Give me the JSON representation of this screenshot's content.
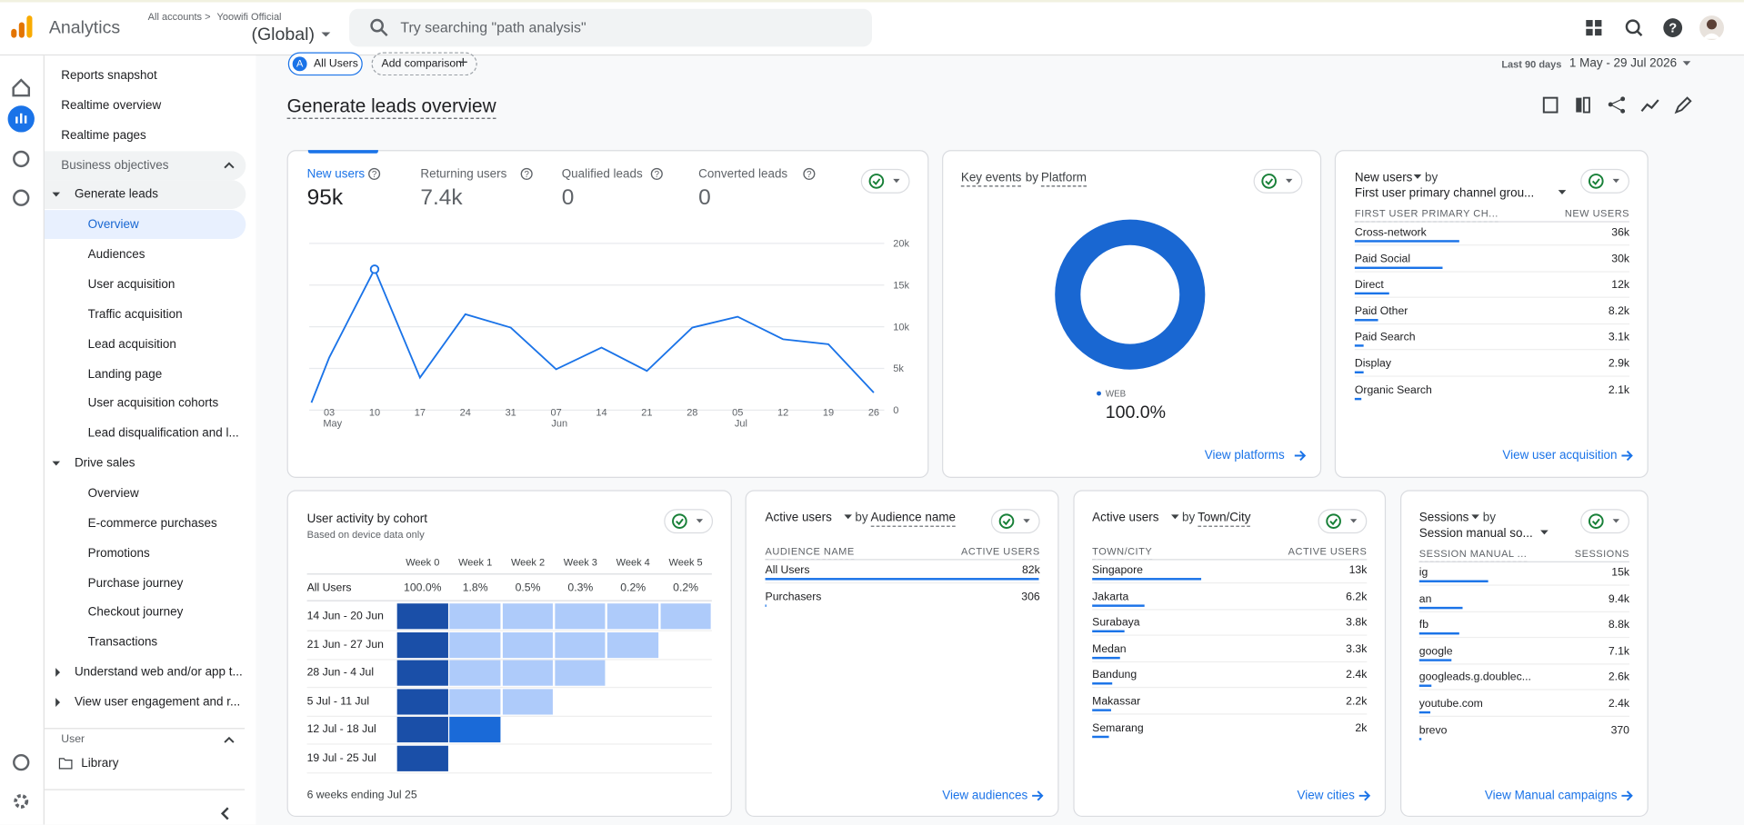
{
  "topbar": {
    "app": "Analytics",
    "breadcrumb": "All accounts",
    "account": "Yoowifi Official",
    "property": "(Global)",
    "search": "Try searching \"path analysis\""
  },
  "sidebar": {
    "items": [
      {
        "label": "Reports snapshot",
        "kind": "link"
      },
      {
        "label": "Realtime overview",
        "kind": "link"
      },
      {
        "label": "Realtime pages",
        "kind": "link"
      },
      {
        "label": "Business objectives",
        "kind": "section"
      },
      {
        "label": "Generate leads",
        "kind": "group-open"
      },
      {
        "label": "Overview",
        "kind": "sub-selected"
      },
      {
        "label": "Audiences",
        "kind": "sub"
      },
      {
        "label": "User acquisition",
        "kind": "sub"
      },
      {
        "label": "Traffic acquisition",
        "kind": "sub"
      },
      {
        "label": "Lead acquisition",
        "kind": "sub"
      },
      {
        "label": "Landing page",
        "kind": "sub"
      },
      {
        "label": "User acquisition cohorts",
        "kind": "sub"
      },
      {
        "label": "Lead disqualification and l...",
        "kind": "sub"
      },
      {
        "label": "Drive sales",
        "kind": "group-open"
      },
      {
        "label": "Overview",
        "kind": "sub"
      },
      {
        "label": "E-commerce purchases",
        "kind": "sub"
      },
      {
        "label": "Promotions",
        "kind": "sub"
      },
      {
        "label": "Purchase journey",
        "kind": "sub"
      },
      {
        "label": "Checkout journey",
        "kind": "sub"
      },
      {
        "label": "Transactions",
        "kind": "sub"
      },
      {
        "label": "Understand web and/or app t...",
        "kind": "group-closed"
      },
      {
        "label": "View user engagement and r...",
        "kind": "group-closed"
      }
    ],
    "section2": "User",
    "library": "Library"
  },
  "filters": {
    "badge": "A",
    "segment": "All Users",
    "add": "Add comparison",
    "range_label": "Last 90 days",
    "range": "1 May - 29 Jul 2026"
  },
  "title": "Generate leads overview",
  "overview": {
    "metrics": [
      {
        "name": "New users",
        "value": "95k"
      },
      {
        "name": "Returning users",
        "value": "7.4k"
      },
      {
        "name": "Qualified leads",
        "value": "0"
      },
      {
        "name": "Converted leads",
        "value": "0"
      }
    ],
    "chart": {
      "type": "line",
      "color": "#1a73e8",
      "categories": [
        null,
        "03",
        "10",
        "17",
        "24",
        "31",
        "07",
        "14",
        "21",
        "28",
        "05",
        "12",
        "19",
        "26"
      ],
      "months": [
        "May",
        "Jun",
        "Jul"
      ],
      "values": [
        900,
        6300,
        16900,
        3900,
        11500,
        9900,
        4900,
        7500,
        4700,
        9900,
        11200,
        8500,
        7900,
        2100
      ],
      "ylim": [
        0,
        20000
      ],
      "yticks": [
        {
          "value": 20000,
          "label": "20k"
        },
        {
          "value": 15000,
          "label": "15k"
        },
        {
          "value": 10000,
          "label": "10k"
        },
        {
          "value": 5000,
          "label": "5k"
        },
        0
      ],
      "grid": true
    }
  },
  "platform": {
    "metric": "Key events",
    "by": "by",
    "dimension": "Platform",
    "chart": {
      "type": "pie",
      "categories": [
        "WEB"
      ],
      "values": [
        100
      ],
      "value_labels": [
        "100.0%"
      ],
      "color": "#1967d2"
    },
    "link": "View platforms"
  },
  "channels": {
    "metric": "New users",
    "by": "by",
    "dimension": "First user primary channel grou...",
    "col1": "FIRST USER PRIMARY CH...",
    "col2": "NEW USERS",
    "link": "View user acquisition",
    "color": "#1a73e8",
    "rows": [
      {
        "name": "Cross-network",
        "value": 36000,
        "label": "36k"
      },
      {
        "name": "Paid Social",
        "value": 30000,
        "label": "30k"
      },
      {
        "name": "Direct",
        "value": 12000,
        "label": "12k"
      },
      {
        "name": "Paid Other",
        "value": 8200,
        "label": "8.2k"
      },
      {
        "name": "Paid Search",
        "value": 3100,
        "label": "3.1k"
      },
      {
        "name": "Display",
        "value": 2900,
        "label": "2.9k"
      },
      {
        "name": "Organic Search",
        "value": 2100,
        "label": "2.1k"
      }
    ]
  },
  "cohort": {
    "title": "User activity by cohort",
    "subtitle": "Based on device data only",
    "columns": [
      "Week 0",
      "Week 1",
      "Week 2",
      "Week 3",
      "Week 4",
      "Week 5"
    ],
    "all_users": {
      "label": "All Users",
      "values": [
        "100.0%",
        "1.8%",
        "0.5%",
        "0.3%",
        "0.2%",
        "0.2%"
      ]
    },
    "rows": [
      {
        "label": "14 Jun - 20 Jun",
        "cells": [
          "#1a4fa8",
          "#aecbfa",
          "#aecbfa",
          "#aecbfa",
          "#aecbfa",
          "#aecbfa"
        ]
      },
      {
        "label": "21 Jun - 27 Jun",
        "cells": [
          "#1a4fa8",
          "#aecbfa",
          "#aecbfa",
          "#aecbfa",
          "#aecbfa"
        ]
      },
      {
        "label": "28 Jun - 4 Jul",
        "cells": [
          "#1a4fa8",
          "#aecbfa",
          "#aecbfa",
          "#aecbfa"
        ]
      },
      {
        "label": "5 Jul - 11 Jul",
        "cells": [
          "#1a4fa8",
          "#aecbfa",
          "#aecbfa"
        ]
      },
      {
        "label": "12 Jul - 18 Jul",
        "cells": [
          "#1a4fa8",
          "#1a6ad8"
        ]
      },
      {
        "label": "19 Jul - 25 Jul",
        "cells": [
          "#1a4fa8"
        ]
      }
    ],
    "footer": "6 weeks ending Jul 25"
  },
  "audiences": {
    "metric": "Active users",
    "by": "by",
    "dimension": "Audience name",
    "col1": "AUDIENCE NAME",
    "col2": "ACTIVE USERS",
    "link": "View audiences",
    "color": "#1a73e8",
    "rows": [
      {
        "name": "All Users",
        "value": 82000,
        "label": "82k"
      },
      {
        "name": "Purchasers",
        "value": 306,
        "label": "306"
      }
    ]
  },
  "cities": {
    "metric": "Active users",
    "by": "by",
    "dimension": "Town/City",
    "col1": "TOWN/CITY",
    "col2": "ACTIVE USERS",
    "link": "View cities",
    "color": "#1a73e8",
    "rows": [
      {
        "name": "Singapore",
        "value": 13000,
        "label": "13k"
      },
      {
        "name": "Jakarta",
        "value": 6200,
        "label": "6.2k"
      },
      {
        "name": "Surabaya",
        "value": 3800,
        "label": "3.8k"
      },
      {
        "name": "Medan",
        "value": 3300,
        "label": "3.3k"
      },
      {
        "name": "Bandung",
        "value": 2400,
        "label": "2.4k"
      },
      {
        "name": "Makassar",
        "value": 2200,
        "label": "2.2k"
      },
      {
        "name": "Semarang",
        "value": 2000,
        "label": "2k"
      }
    ]
  },
  "sessions": {
    "metric": "Sessions",
    "by": "by",
    "dimension": "Session manual so...",
    "col1": "SESSION MANUAL ...",
    "col2": "SESSIONS",
    "link": "View Manual campaigns",
    "color": "#1a73e8",
    "rows": [
      {
        "name": "ig",
        "value": 15000,
        "label": "15k"
      },
      {
        "name": "an",
        "value": 9400,
        "label": "9.4k"
      },
      {
        "name": "fb",
        "value": 8800,
        "label": "8.8k"
      },
      {
        "name": "google",
        "value": 7100,
        "label": "7.1k"
      },
      {
        "name": "googleads.g.doublec...",
        "value": 2600,
        "label": "2.6k"
      },
      {
        "name": "youtube.com",
        "value": 2400,
        "label": "2.4k"
      },
      {
        "name": "brevo",
        "value": 370,
        "label": "370"
      }
    ]
  }
}
